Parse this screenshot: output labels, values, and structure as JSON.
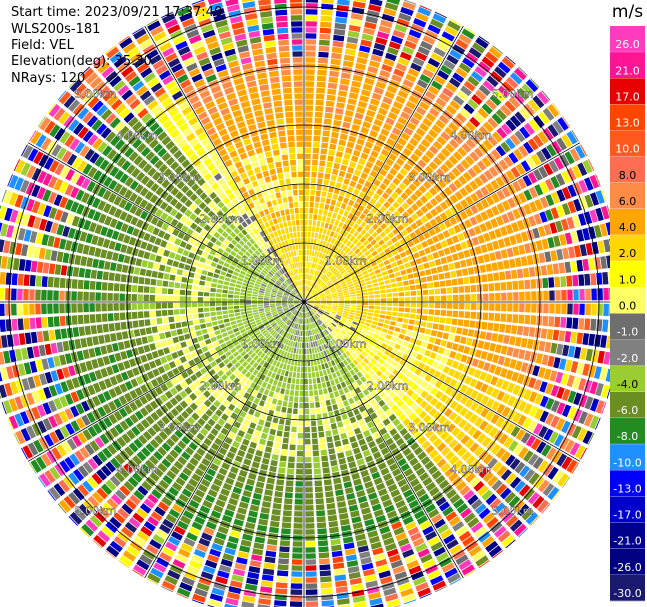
{
  "header": {
    "start_time": "Start time: 2023/09/21 17:37:40",
    "device": "WLS200s-181",
    "field": "Field: VEL",
    "elevation": "Elevation(deg): 35.30",
    "nrays": "NRays: 120"
  },
  "chart_data": {
    "type": "heatmap",
    "projection": "polar-ppi",
    "field": "VEL",
    "unit": "m/s",
    "n_rays": 120,
    "range_rings_km": [
      1.0,
      2.0,
      3.0,
      4.0,
      5.0
    ],
    "range_ring_labels": [
      "1.00km",
      "2.00km",
      "3.00km",
      "4.00km",
      "5.00km"
    ],
    "max_range_km": 5.4,
    "colorbar": {
      "title": "m/s",
      "levels": [
        "26.0",
        "21.0",
        "17.0",
        "13.0",
        "10.0",
        "8.0",
        "6.0",
        "4.0",
        "2.0",
        "1.0",
        "0.0",
        "-1.0",
        "-2.0",
        "-4.0",
        "-6.0",
        "-8.0",
        "-10.0",
        "-13.0",
        "-17.0",
        "-21.0",
        "-26.0",
        "-30.0"
      ],
      "colors": [
        "#ff3cbe",
        "#ff1493",
        "#e60000",
        "#ff4500",
        "#ff5a1e",
        "#ff6e50",
        "#ff8c46",
        "#ffa500",
        "#ffd700",
        "#ffff00",
        "#ffff66",
        "#6e6e6e",
        "#808080",
        "#9acd32",
        "#6b8e23",
        "#228b22",
        "#1e90ff",
        "#0000ff",
        "#0000cd",
        "#00008b",
        "#000080",
        "#191970"
      ]
    },
    "regions": [
      {
        "from_deg": -30,
        "to_deg": 110,
        "inner_value": 2.0,
        "outer_value": 6.0
      },
      {
        "from_deg": 110,
        "to_deg": 140,
        "inner_value": 0.0,
        "outer_value": 4.0
      },
      {
        "from_deg": 140,
        "to_deg": 320,
        "inner_value": -2.0,
        "outer_value": -6.0
      },
      {
        "from_deg": 320,
        "to_deg": 330,
        "inner_value": -1.0,
        "outer_value": 2.0
      }
    ]
  }
}
